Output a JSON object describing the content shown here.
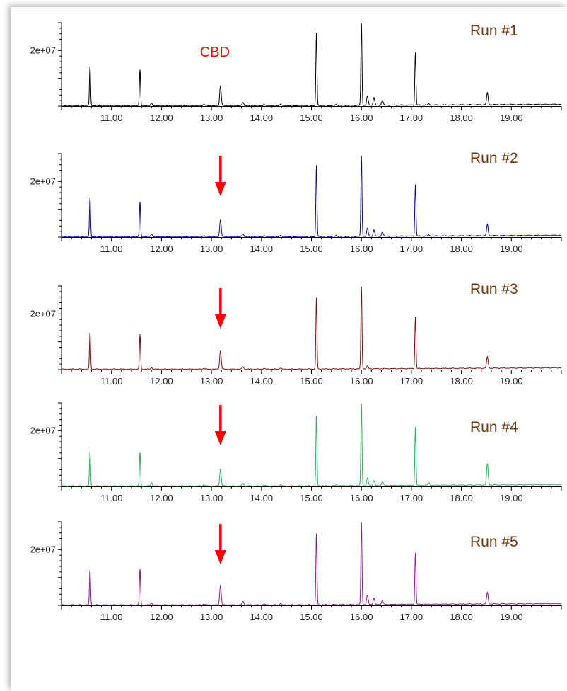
{
  "chart_data": [
    {
      "type": "line",
      "title": "Run #1",
      "series": [
        {
          "color": "#000000"
        }
      ],
      "x_ticks": [
        "11.00",
        "12.00",
        "13.00",
        "14.00",
        "15.00",
        "16.00",
        "17.00",
        "18.00",
        "19.00"
      ],
      "y_ticks": [
        "2e+07"
      ],
      "xlim": [
        10.0,
        20.0
      ],
      "ylim": [
        0,
        30000000
      ],
      "peaks": [
        [
          10.57,
          14000000
        ],
        [
          11.57,
          13000000
        ],
        [
          11.8,
          1000000
        ],
        [
          12.85,
          600000
        ],
        [
          13.18,
          7000000
        ],
        [
          13.63,
          1200000
        ],
        [
          14.05,
          500000
        ],
        [
          14.38,
          700000
        ],
        [
          15.1,
          26000000
        ],
        [
          15.5,
          400000
        ],
        [
          16.0,
          29500000
        ],
        [
          16.12,
          3200000
        ],
        [
          16.25,
          2800000
        ],
        [
          16.42,
          1800000
        ],
        [
          17.08,
          19000000
        ],
        [
          17.35,
          400000
        ],
        [
          18.52,
          4200000
        ]
      ],
      "annotations": [
        {
          "text": "CBD",
          "x": 13.18,
          "color": "#ff0000"
        }
      ],
      "label_color": "#6b3a0f"
    },
    {
      "type": "line",
      "title": "Run #2",
      "series": [
        {
          "color": "#0a0a8c"
        }
      ],
      "x_ticks": [
        "11.00",
        "12.00",
        "13.00",
        "14.00",
        "15.00",
        "16.00",
        "17.00",
        "18.00",
        "19.00"
      ],
      "y_ticks": [
        "2e+07"
      ],
      "xlim": [
        10.0,
        20.0
      ],
      "ylim": [
        0,
        30000000
      ],
      "peaks": [
        [
          10.57,
          14000000
        ],
        [
          11.57,
          12500000
        ],
        [
          11.8,
          1000000
        ],
        [
          12.85,
          500000
        ],
        [
          13.18,
          6000000
        ],
        [
          13.63,
          1000000
        ],
        [
          14.05,
          400000
        ],
        [
          14.38,
          600000
        ],
        [
          15.1,
          25500000
        ],
        [
          15.5,
          400000
        ],
        [
          16.0,
          29000000
        ],
        [
          16.12,
          2800000
        ],
        [
          16.25,
          2300000
        ],
        [
          16.42,
          1600000
        ],
        [
          17.08,
          18500000
        ],
        [
          17.35,
          350000
        ],
        [
          18.52,
          4000000
        ]
      ],
      "annotations": [
        {
          "text": "",
          "x": 13.18,
          "color": "#ff0000"
        }
      ],
      "label_color": "#6b3a0f"
    },
    {
      "type": "line",
      "title": "Run #3",
      "series": [
        {
          "color": "#7a1010"
        }
      ],
      "x_ticks": [
        "11.00",
        "12.00",
        "13.00",
        "14.00",
        "15.00",
        "16.00",
        "17.00",
        "18.00",
        "19.00"
      ],
      "y_ticks": [
        "2e+07"
      ],
      "xlim": [
        10.0,
        20.0
      ],
      "ylim": [
        0,
        30000000
      ],
      "peaks": [
        [
          10.57,
          13000000
        ],
        [
          11.57,
          12500000
        ],
        [
          11.8,
          600000
        ],
        [
          12.85,
          400000
        ],
        [
          13.18,
          6500000
        ],
        [
          13.63,
          900000
        ],
        [
          14.05,
          300000
        ],
        [
          14.38,
          500000
        ],
        [
          15.1,
          25500000
        ],
        [
          16.0,
          29500000
        ],
        [
          16.12,
          1000000
        ],
        [
          17.08,
          18500000
        ],
        [
          18.52,
          4000000
        ]
      ],
      "annotations": [
        {
          "text": "",
          "x": 13.18,
          "color": "#ff0000"
        }
      ],
      "label_color": "#6b3a0f"
    },
    {
      "type": "line",
      "title": "Run #4",
      "series": [
        {
          "color": "#2fae5e"
        }
      ],
      "x_ticks": [
        "11.00",
        "12.00",
        "13.00",
        "14.00",
        "15.00",
        "16.00",
        "17.00",
        "18.00",
        "19.00"
      ],
      "y_ticks": [
        "2e+07"
      ],
      "xlim": [
        10.0,
        20.0
      ],
      "ylim": [
        0,
        30000000
      ],
      "peaks": [
        [
          10.57,
          12000000
        ],
        [
          11.57,
          12000000
        ],
        [
          11.8,
          1200000
        ],
        [
          12.85,
          500000
        ],
        [
          13.18,
          6000000
        ],
        [
          13.63,
          1000000
        ],
        [
          14.05,
          400000
        ],
        [
          14.38,
          600000
        ],
        [
          15.1,
          25000000
        ],
        [
          15.5,
          400000
        ],
        [
          16.0,
          29500000
        ],
        [
          16.12,
          2600000
        ],
        [
          16.25,
          1800000
        ],
        [
          16.42,
          1400000
        ],
        [
          17.08,
          21000000
        ],
        [
          17.35,
          900000
        ],
        [
          18.52,
          7500000
        ]
      ],
      "annotations": [
        {
          "text": "",
          "x": 13.18,
          "color": "#ff0000"
        }
      ],
      "label_color": "#6b3a0f"
    },
    {
      "type": "line",
      "title": "Run #5",
      "series": [
        {
          "color": "#8a1a8a"
        }
      ],
      "x_ticks": [
        "11.00",
        "12.00",
        "13.00",
        "14.00",
        "15.00",
        "16.00",
        "17.00",
        "18.00",
        "19.00"
      ],
      "y_ticks": [
        "2e+07"
      ],
      "xlim": [
        10.0,
        20.0
      ],
      "ylim": [
        0,
        30000000
      ],
      "peaks": [
        [
          10.57,
          12500000
        ],
        [
          11.57,
          13000000
        ],
        [
          11.8,
          700000
        ],
        [
          12.85,
          400000
        ],
        [
          13.18,
          7000000
        ],
        [
          13.63,
          1300000
        ],
        [
          14.05,
          400000
        ],
        [
          14.38,
          600000
        ],
        [
          15.1,
          25500000
        ],
        [
          16.0,
          29500000
        ],
        [
          16.12,
          3300000
        ],
        [
          16.25,
          2300000
        ],
        [
          16.42,
          1500000
        ],
        [
          17.08,
          18500000
        ],
        [
          18.52,
          4000000
        ]
      ],
      "annotations": [
        {
          "text": "",
          "x": 13.18,
          "color": "#ff0000"
        }
      ],
      "label_color": "#6b3a0f"
    }
  ]
}
